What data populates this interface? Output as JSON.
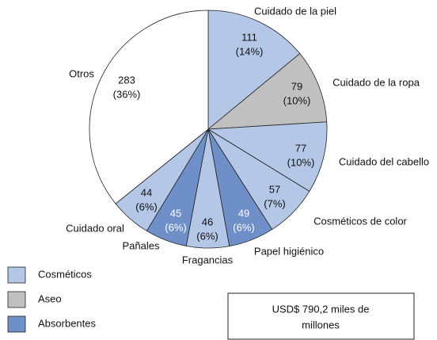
{
  "chart_data": {
    "type": "pie",
    "categories": [
      "Cuidado de la piel",
      "Cuidado de la ropa",
      "Cuidado del cabello",
      "Cosméticos de color",
      "Papel higiénico",
      "Fragancias",
      "Pañales",
      "Cuidado oral",
      "Otros"
    ],
    "values": [
      111,
      79,
      77,
      57,
      49,
      46,
      45,
      44,
      283
    ],
    "percent_labels": [
      "(14%)",
      "(10%)",
      "(10%)",
      "(7%)",
      "(6%)",
      "(6%)",
      "(6%)",
      "(6%)",
      "(36%)"
    ],
    "colors": [
      "#b4c7e7",
      "#c0c0c0",
      "#b4c7e7",
      "#b4c7e7",
      "#6f8fc8",
      "#b4c7e7",
      "#6f8fc8",
      "#b4c7e7",
      "#ffffff"
    ],
    "legend": [
      {
        "name": "Cosméticos",
        "color": "#b4c7e7"
      },
      {
        "name": "Aseo",
        "color": "#c0c0c0"
      },
      {
        "name": "Absorbentes",
        "color": "#6f8fc8"
      }
    ],
    "total_label": [
      "USD$ 790,2 miles de",
      "millones"
    ]
  }
}
